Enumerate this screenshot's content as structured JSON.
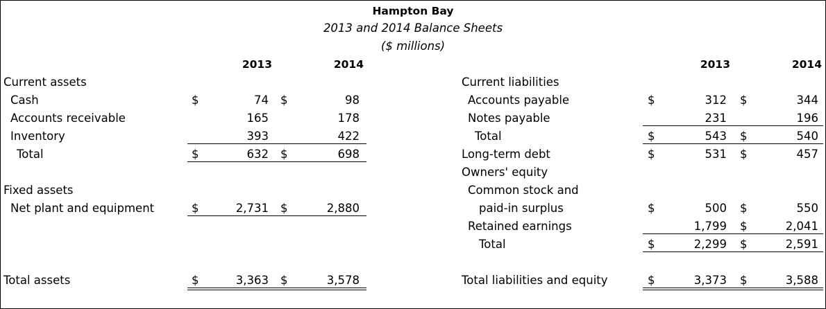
{
  "header": {
    "company": "Hampton Bay",
    "subtitle": "2013 and 2014 Balance Sheets",
    "units": "($ millions)"
  },
  "years": {
    "y1": "2013",
    "y2": "2014"
  },
  "currency": "$",
  "assets": {
    "current_label": "Current assets",
    "cash": {
      "label": "Cash",
      "y2013": "74",
      "y2014": "98"
    },
    "receivables": {
      "label": "Accounts receivable",
      "y2013": "165",
      "y2014": "178"
    },
    "inventory": {
      "label": "Inventory",
      "y2013": "393",
      "y2014": "422"
    },
    "current_total": {
      "label": "Total",
      "y2013": "632",
      "y2014": "698"
    },
    "fixed_label": "Fixed assets",
    "net_plant": {
      "label": "Net plant and equipment",
      "y2013": "2,731",
      "y2014": "2,880"
    },
    "total": {
      "label": "Total assets",
      "y2013": "3,363",
      "y2014": "3,578"
    }
  },
  "liabilities": {
    "current_label": "Current liabilities",
    "payables": {
      "label": "Accounts payable",
      "y2013": "312",
      "y2014": "344"
    },
    "notes": {
      "label": "Notes payable",
      "y2013": "231",
      "y2014": "196"
    },
    "current_total": {
      "label": "Total",
      "y2013": "543",
      "y2014": "540"
    },
    "long_term_debt": {
      "label": "Long-term debt",
      "y2013": "531",
      "y2014": "457"
    },
    "equity_label": "Owners' equity",
    "common_stock_line1": "Common stock and",
    "common_stock": {
      "label": "paid-in surplus",
      "y2013": "500",
      "y2014": "550"
    },
    "retained": {
      "label": "Retained earnings",
      "y2013": "1,799",
      "y2014": "2,041"
    },
    "equity_total": {
      "label": "Total",
      "y2013": "2,299",
      "y2014": "2,591"
    },
    "total": {
      "label": "Total liabilities and equity",
      "y2013": "3,373",
      "y2014": "3,588"
    }
  }
}
